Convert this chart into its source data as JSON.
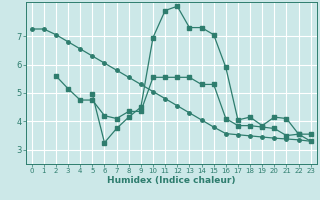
{
  "bg_color": "#cce8e8",
  "grid_color": "#ffffff",
  "line_color": "#2e7d6e",
  "xlabel": "Humidex (Indice chaleur)",
  "xlim": [
    -0.5,
    23.5
  ],
  "ylim": [
    2.5,
    8.2
  ],
  "yticks": [
    3,
    4,
    5,
    6,
    7
  ],
  "xticks": [
    0,
    1,
    2,
    3,
    4,
    5,
    6,
    7,
    8,
    9,
    10,
    11,
    12,
    13,
    14,
    15,
    16,
    17,
    18,
    19,
    20,
    21,
    22,
    23
  ],
  "line1_x": [
    0,
    1,
    2,
    3,
    4,
    5,
    6,
    7,
    8,
    9,
    10,
    11,
    12,
    13,
    14,
    15,
    16,
    17,
    18,
    19,
    20,
    21,
    22,
    23
  ],
  "line1_y": [
    7.25,
    7.25,
    7.05,
    6.8,
    6.55,
    6.3,
    6.05,
    5.8,
    5.55,
    5.3,
    5.05,
    4.8,
    4.55,
    4.3,
    4.05,
    3.8,
    3.57,
    3.53,
    3.49,
    3.45,
    3.41,
    3.38,
    3.35,
    3.3
  ],
  "line2_x": [
    2,
    3,
    4,
    5,
    6,
    7,
    8,
    9,
    10,
    11,
    12,
    13,
    14,
    15,
    16,
    17,
    18,
    19,
    20,
    21,
    22,
    23
  ],
  "line2_y": [
    5.6,
    5.15,
    4.75,
    4.75,
    4.2,
    4.1,
    4.35,
    4.35,
    5.55,
    5.55,
    5.55,
    5.55,
    5.3,
    5.3,
    4.1,
    3.85,
    3.85,
    3.8,
    3.75,
    3.5,
    3.55,
    3.3
  ],
  "line3_x": [
    5,
    6,
    7,
    8,
    9,
    10,
    11,
    12,
    13,
    14,
    15,
    16,
    17,
    18,
    19,
    20,
    21,
    22,
    23
  ],
  "line3_y": [
    4.95,
    3.25,
    3.75,
    4.15,
    4.5,
    6.95,
    7.9,
    8.05,
    7.3,
    7.3,
    7.05,
    5.9,
    4.05,
    4.15,
    3.85,
    4.15,
    4.1,
    3.55,
    3.55
  ]
}
